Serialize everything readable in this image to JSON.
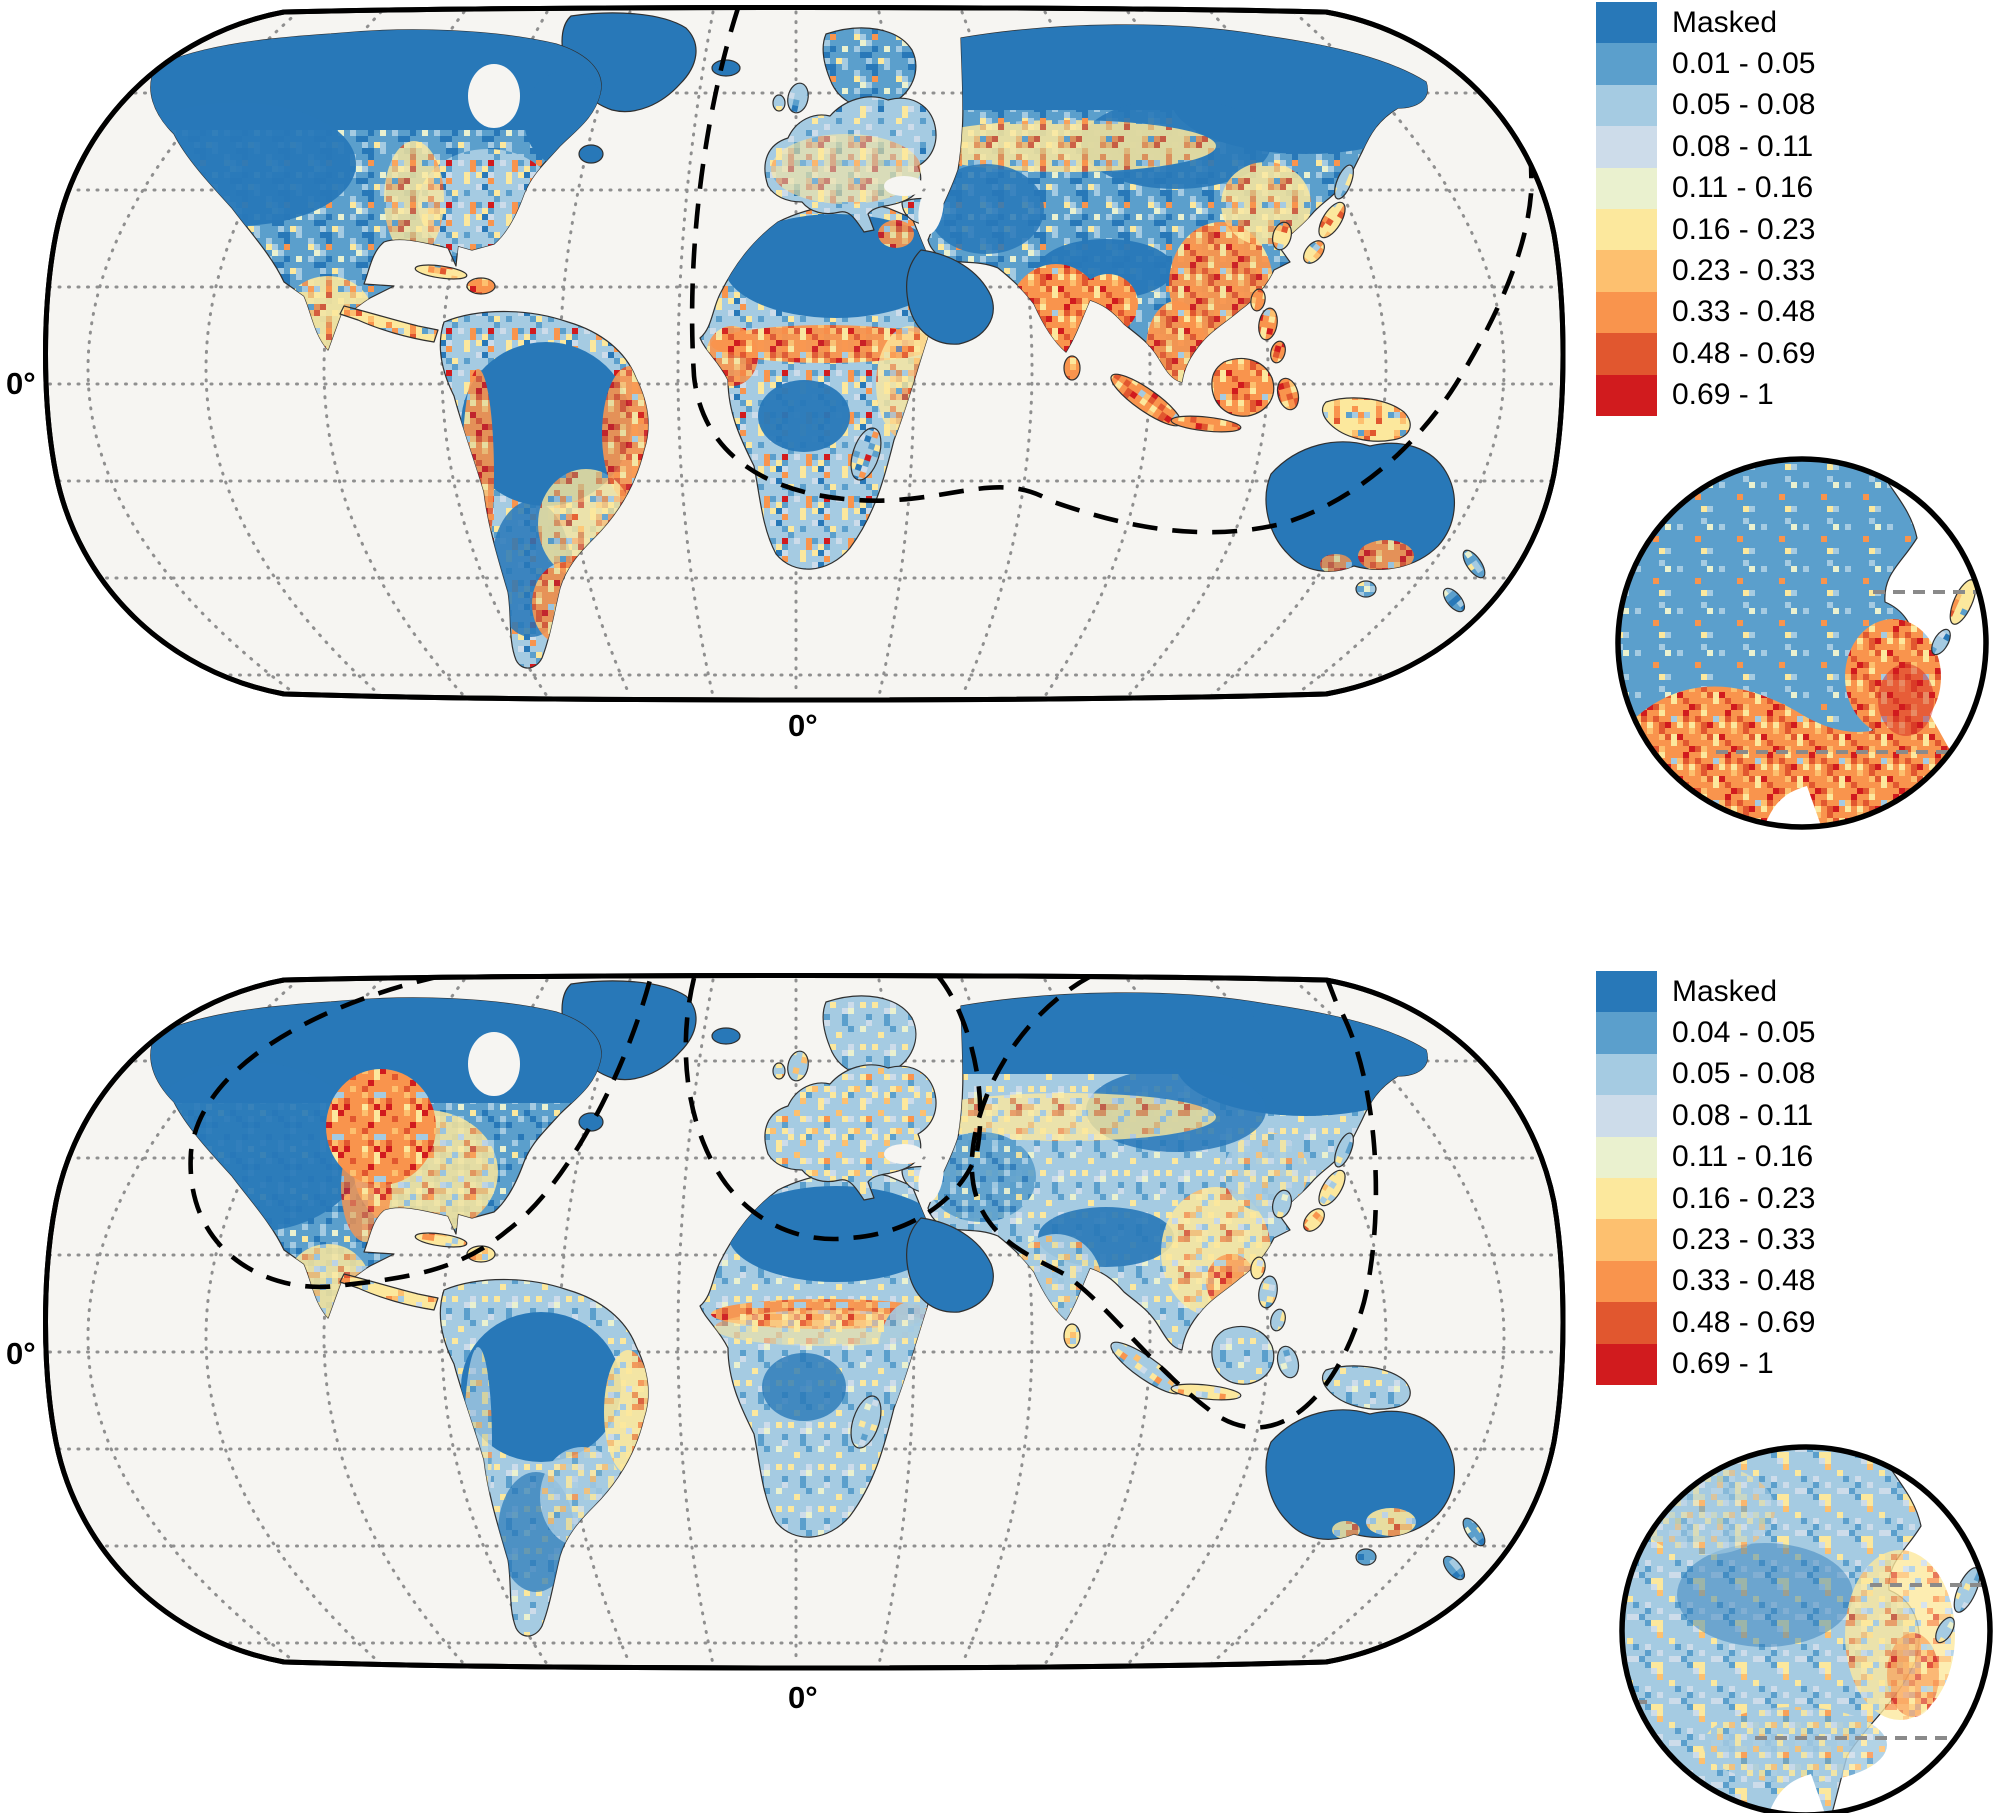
{
  "figure": {
    "type": "choropleth-world-map-figure",
    "panel_count": 2
  },
  "palette": {
    "masked": "#2878B8",
    "bin1": "#5B9FCC",
    "bin2": "#A5CBE2",
    "bin3": "#CDDCEA",
    "bin4": "#EAF1CF",
    "bin5": "#FCE89D",
    "bin6": "#FDC06F",
    "bin7": "#F9944D",
    "bin8": "#E1572F",
    "bin9": "#D11B1E",
    "sea": "#F6F5F2",
    "grid": "#8F8F8F",
    "coast": "#2F2F2F",
    "boundary": "#000000"
  },
  "panels": [
    {
      "id": "top-map",
      "equator_label": "0°",
      "meridian_label": "0°",
      "legend": {
        "entries": [
          {
            "label": "Masked",
            "color": "#2878B8"
          },
          {
            "label": "0.01 - 0.05",
            "color": "#5B9FCC"
          },
          {
            "label": "0.05 - 0.08",
            "color": "#A5CBE2"
          },
          {
            "label": "0.08 - 0.11",
            "color": "#CDDCEA"
          },
          {
            "label": "0.11 - 0.16",
            "color": "#EAF1CF"
          },
          {
            "label": "0.16 - 0.23",
            "color": "#FCE89D"
          },
          {
            "label": "0.23 - 0.33",
            "color": "#FDC06F"
          },
          {
            "label": "0.33 - 0.48",
            "color": "#F9944D"
          },
          {
            "label": "0.48 - 0.69",
            "color": "#E1572F"
          },
          {
            "label": "0.69 - 1",
            "color": "#D11B1E"
          }
        ]
      },
      "inset": {
        "name": "asia-region-inset"
      }
    },
    {
      "id": "bottom-map",
      "equator_label": "0°",
      "meridian_label": "0°",
      "legend": {
        "entries": [
          {
            "label": "Masked",
            "color": "#2878B8"
          },
          {
            "label": "0.04 - 0.05",
            "color": "#5B9FCC"
          },
          {
            "label": "0.05 - 0.08",
            "color": "#A5CBE2"
          },
          {
            "label": "0.08 - 0.11",
            "color": "#CDDCEA"
          },
          {
            "label": "0.11 - 0.16",
            "color": "#EAF1CF"
          },
          {
            "label": "0.16 - 0.23",
            "color": "#FCE89D"
          },
          {
            "label": "0.23 - 0.33",
            "color": "#FDC06F"
          },
          {
            "label": "0.33 - 0.48",
            "color": "#F9944D"
          },
          {
            "label": "0.48 - 0.69",
            "color": "#E1572F"
          },
          {
            "label": "0.69 - 1",
            "color": "#D11B1E"
          }
        ]
      },
      "inset": {
        "name": "asia-region-inset"
      }
    }
  ]
}
